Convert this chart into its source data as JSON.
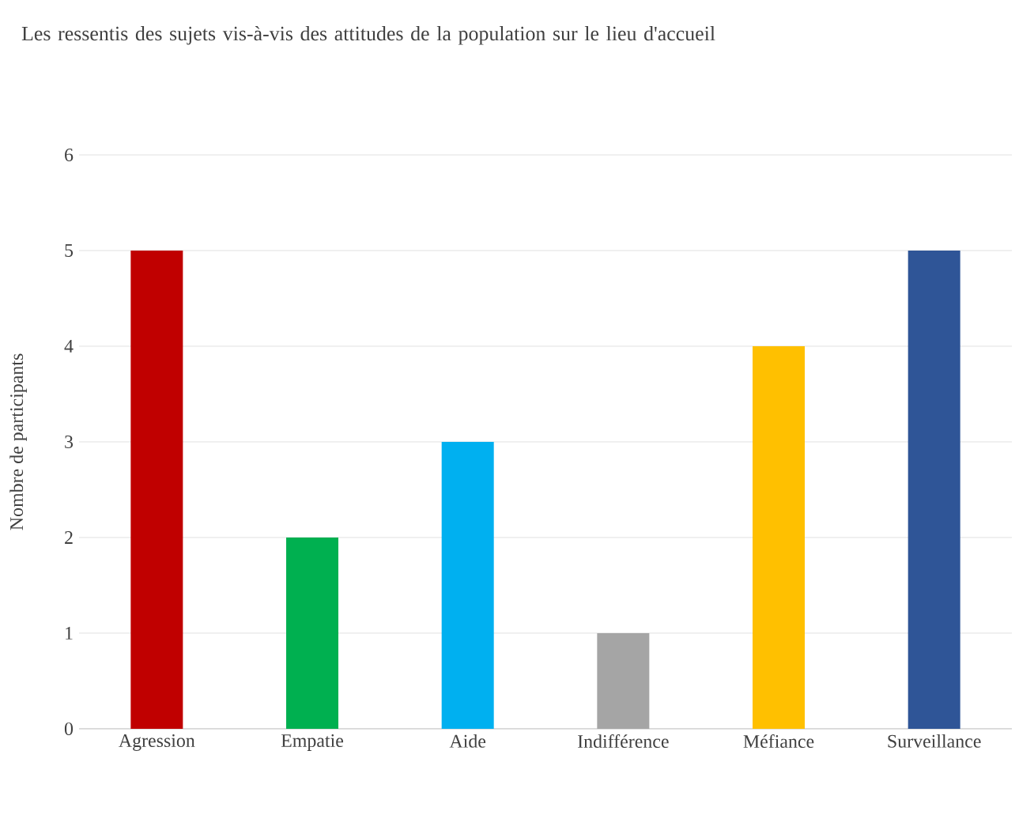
{
  "chart_data": {
    "type": "bar",
    "title": "Les ressentis des sujets vis-à-vis des attitudes de la population sur le lieu d'accueil",
    "ylabel": "Nombre de participants",
    "categories": [
      "Agression",
      "Empatie",
      "Aide",
      "Indifférence",
      "Méfiance",
      "Surveillance"
    ],
    "values": [
      5,
      2,
      3,
      1,
      4,
      5
    ],
    "colors": [
      "#c00000",
      "#00b050",
      "#00b0f0",
      "#a5a5a5",
      "#ffc000",
      "#2f5597"
    ],
    "ylim": [
      0,
      6
    ],
    "yticks": [
      0,
      1,
      2,
      3,
      4,
      5,
      6
    ],
    "grid": "y"
  }
}
